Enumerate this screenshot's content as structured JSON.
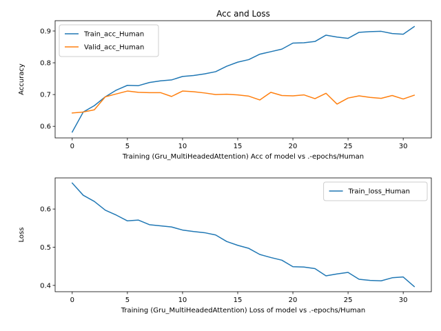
{
  "chart_data": [
    {
      "type": "line",
      "title": "Acc and Loss",
      "xlabel": "Training (Gru_MultiHeadedAttention) Acc of model vs .-epochs/Human",
      "ylabel": "Accuracy",
      "xlim": [
        -1.55,
        32.55
      ],
      "ylim": [
        0.5635,
        0.9325
      ],
      "xticks": [
        0,
        5,
        10,
        15,
        20,
        25,
        30
      ],
      "yticks": [
        0.6,
        0.7,
        0.8,
        0.9
      ],
      "ytick_labels": [
        "0.6",
        "0.7",
        "0.8",
        "0.9"
      ],
      "legend_position": "upper left",
      "x": [
        0,
        1,
        2,
        3,
        4,
        5,
        6,
        7,
        8,
        9,
        10,
        11,
        12,
        13,
        14,
        15,
        16,
        17,
        18,
        19,
        20,
        21,
        22,
        23,
        24,
        25,
        26,
        27,
        28,
        29,
        30,
        31
      ],
      "series": [
        {
          "name": "Train_acc_Human",
          "color": "#1f77b4",
          "values": [
            0.582,
            0.645,
            0.665,
            0.693,
            0.714,
            0.729,
            0.728,
            0.738,
            0.743,
            0.746,
            0.757,
            0.76,
            0.765,
            0.772,
            0.789,
            0.802,
            0.81,
            0.827,
            0.835,
            0.843,
            0.862,
            0.863,
            0.867,
            0.887,
            0.881,
            0.877,
            0.896,
            0.898,
            0.899,
            0.892,
            0.89,
            0.914
          ]
        },
        {
          "name": "Valid_acc_Human",
          "color": "#ff7f0e",
          "values": [
            0.642,
            0.645,
            0.652,
            0.693,
            0.702,
            0.711,
            0.707,
            0.706,
            0.706,
            0.694,
            0.711,
            0.709,
            0.705,
            0.7,
            0.701,
            0.699,
            0.695,
            0.683,
            0.707,
            0.697,
            0.696,
            0.699,
            0.687,
            0.704,
            0.67,
            0.689,
            0.696,
            0.691,
            0.688,
            0.697,
            0.686,
            0.698
          ]
        }
      ]
    },
    {
      "type": "line",
      "title": "",
      "xlabel": "Training (Gru_MultiHeadedAttention) Loss of model vs .-epochs/Human",
      "ylabel": "Loss",
      "xlim": [
        -1.55,
        32.55
      ],
      "ylim": [
        0.3835,
        0.6815
      ],
      "xticks": [
        0,
        5,
        10,
        15,
        20,
        25,
        30
      ],
      "yticks": [
        0.4,
        0.5,
        0.6
      ],
      "ytick_labels": [
        "0.4",
        "0.5",
        "0.6"
      ],
      "legend_position": "upper right",
      "x": [
        0,
        1,
        2,
        3,
        4,
        5,
        6,
        7,
        8,
        9,
        10,
        11,
        12,
        13,
        14,
        15,
        16,
        17,
        18,
        19,
        20,
        21,
        22,
        23,
        24,
        25,
        26,
        27,
        28,
        29,
        30,
        31
      ],
      "series": [
        {
          "name": "Train_loss_Human",
          "color": "#1f77b4",
          "values": [
            0.668,
            0.636,
            0.62,
            0.597,
            0.584,
            0.569,
            0.571,
            0.559,
            0.556,
            0.553,
            0.545,
            0.541,
            0.538,
            0.532,
            0.515,
            0.505,
            0.497,
            0.481,
            0.473,
            0.466,
            0.449,
            0.448,
            0.444,
            0.425,
            0.43,
            0.434,
            0.416,
            0.413,
            0.412,
            0.42,
            0.422,
            0.397
          ]
        }
      ]
    }
  ]
}
